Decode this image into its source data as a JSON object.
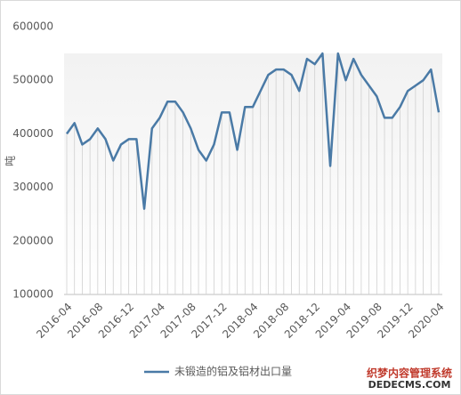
{
  "chart_data": {
    "type": "line",
    "y_label": "吨",
    "categories": [
      "2016-04",
      null,
      null,
      null,
      "2016-08",
      null,
      null,
      null,
      "2016-12",
      null,
      null,
      null,
      "2017-04",
      null,
      null,
      null,
      "2017-08",
      null,
      null,
      null,
      "2017-12",
      null,
      null,
      null,
      "2018-04",
      null,
      null,
      null,
      "2018-08",
      null,
      null,
      null,
      "2018-12",
      null,
      null,
      null,
      "2019-04",
      null,
      null,
      null,
      "2019-08",
      null,
      null,
      null,
      "2019-12",
      null,
      null,
      null,
      "2020-04"
    ],
    "series": [
      {
        "name": "未锻造的铝及铝材出口量",
        "color": "#4a7aa6",
        "values": [
          400000,
          420000,
          380000,
          390000,
          410000,
          390000,
          350000,
          380000,
          390000,
          390000,
          260000,
          410000,
          430000,
          460000,
          460000,
          440000,
          410000,
          370000,
          350000,
          380000,
          440000,
          440000,
          370000,
          450000,
          450000,
          480000,
          510000,
          520000,
          520000,
          510000,
          480000,
          540000,
          530000,
          550000,
          340000,
          550000,
          500000,
          540000,
          510000,
          490000,
          470000,
          430000,
          430000,
          450000,
          480000,
          490000,
          500000,
          520000,
          440000
        ]
      }
    ],
    "ylim": [
      100000,
      600000
    ],
    "yticks": [
      100000,
      200000,
      300000,
      400000,
      500000,
      600000
    ],
    "grid": false,
    "drop_lines": true,
    "legend": "bottom"
  },
  "watermark": {
    "line1": "织梦内容管理系统",
    "line2": "DEDECMS.COM"
  }
}
